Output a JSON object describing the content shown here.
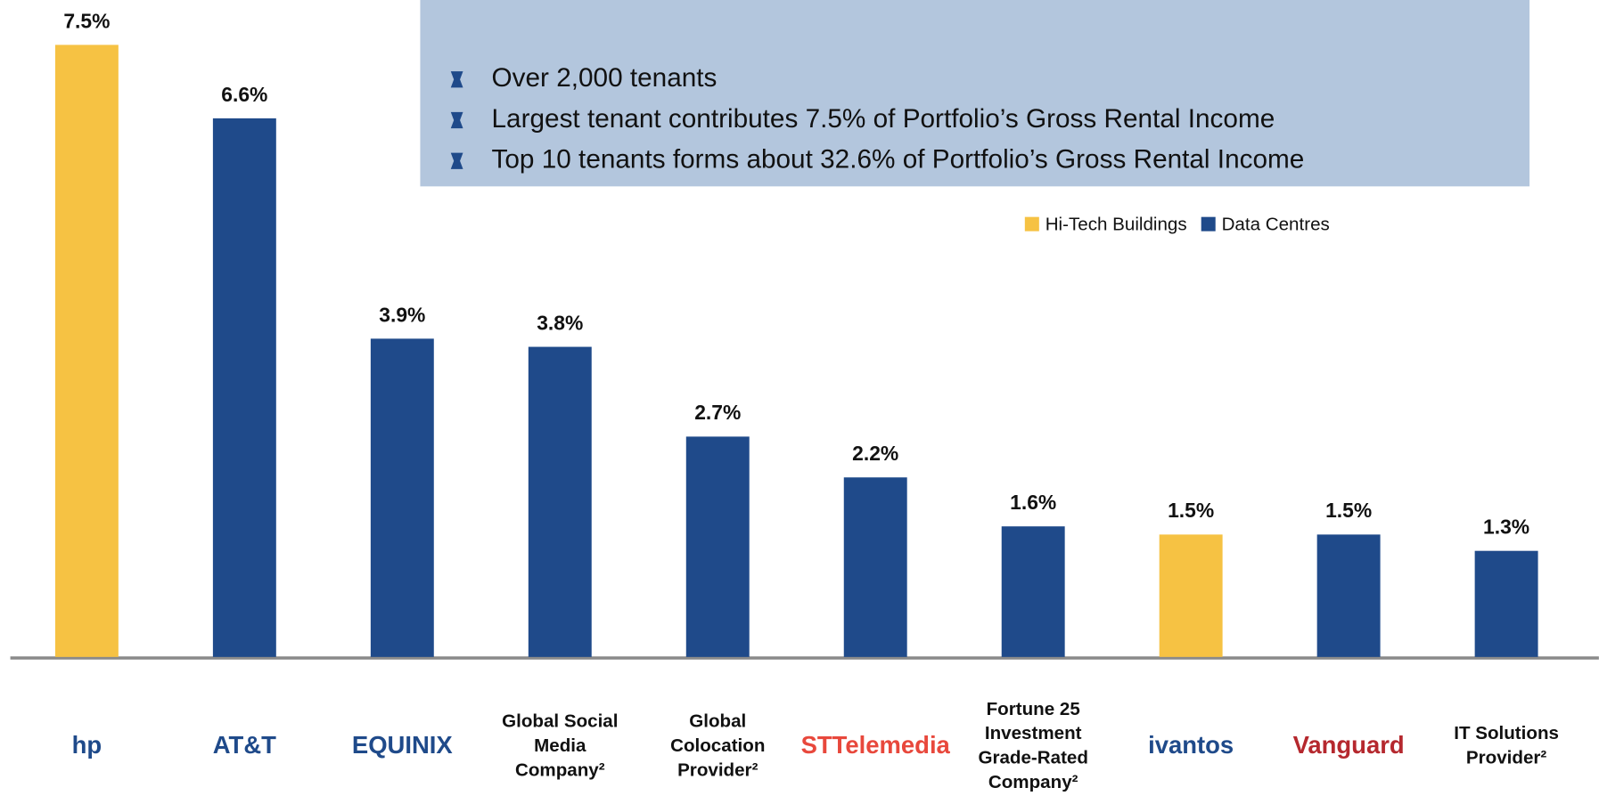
{
  "chart_data": {
    "type": "bar",
    "categories": [
      [
        "hp"
      ],
      [
        "AT&T"
      ],
      [
        "EQUINIX"
      ],
      [
        "Global Social",
        "Media",
        "Company²"
      ],
      [
        "Global",
        "Colocation",
        "Provider²"
      ],
      [
        "STTelemedia"
      ],
      [
        "Fortune 25",
        "Investment",
        "Grade-Rated",
        "Company²"
      ],
      [
        "ivantos"
      ],
      [
        "Vanguard"
      ],
      [
        "IT Solutions",
        "Provider²"
      ]
    ],
    "series": [
      {
        "name": "Hi-Tech Buildings",
        "color": "#f6c243",
        "values": [
          7.5,
          null,
          null,
          null,
          null,
          null,
          null,
          1.5,
          null,
          null
        ],
        "value_labels": [
          "7.5%",
          null,
          null,
          null,
          null,
          null,
          null,
          "1.5%",
          null,
          null
        ]
      },
      {
        "name": "Data Centres",
        "color": "#1f4a8a",
        "values": [
          null,
          6.6,
          3.9,
          3.8,
          2.7,
          2.2,
          1.6,
          null,
          1.5,
          1.3
        ],
        "value_labels": [
          null,
          "6.6%",
          "3.9%",
          "3.8%",
          "2.7%",
          "2.2%",
          "1.6%",
          null,
          "1.5%",
          "1.3%"
        ]
      }
    ],
    "ylim": [
      0,
      8
    ],
    "legend": "top-right",
    "annotations": [
      "Over 2,000 tenants",
      "Largest tenant contributes 7.5% of Portfolio’s Gross Rental Income",
      "Top 10 tenants forms about 32.6% of Portfolio’s Gross Rental Income"
    ]
  }
}
